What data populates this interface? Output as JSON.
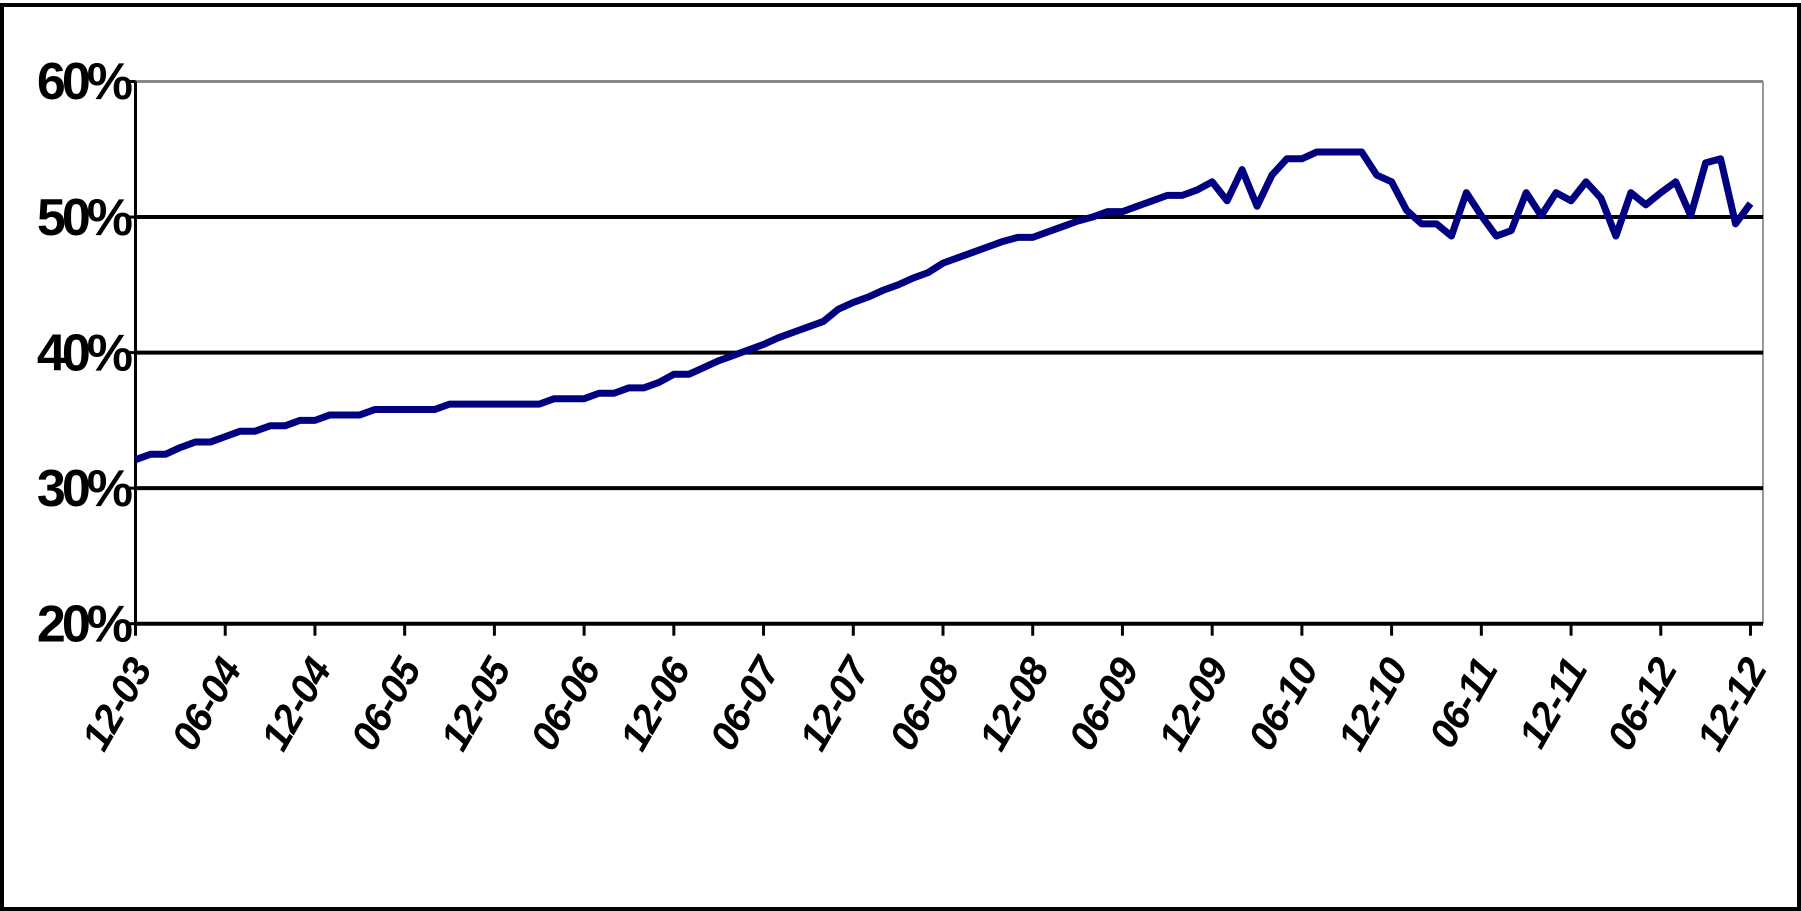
{
  "chart_data": {
    "type": "line",
    "categories": [
      "12-03",
      null,
      null,
      null,
      null,
      null,
      "06-04",
      null,
      null,
      null,
      null,
      null,
      "12-04",
      null,
      null,
      null,
      null,
      null,
      "06-05",
      null,
      null,
      null,
      null,
      null,
      "12-05",
      null,
      null,
      null,
      null,
      null,
      "06-06",
      null,
      null,
      null,
      null,
      null,
      "12-06",
      null,
      null,
      null,
      null,
      null,
      "06-07",
      null,
      null,
      null,
      null,
      null,
      "12-07",
      null,
      null,
      null,
      null,
      null,
      "06-08",
      null,
      null,
      null,
      null,
      null,
      "12-08",
      null,
      null,
      null,
      null,
      null,
      "06-09",
      null,
      null,
      null,
      null,
      null,
      "12-09",
      null,
      null,
      null,
      null,
      null,
      "06-10",
      null,
      null,
      null,
      null,
      null,
      "12-10",
      null,
      null,
      null,
      null,
      null,
      "06-11",
      null,
      null,
      null,
      null,
      null,
      "12-11",
      null,
      null,
      null,
      null,
      null,
      "06-12",
      null,
      null,
      null,
      null,
      null,
      "12-12"
    ],
    "series": [
      {
        "color": "#000080",
        "values": [
          32.1,
          32.5,
          32.5,
          33,
          33.4,
          33.4,
          33.8,
          34.2,
          34.2,
          34.6,
          34.6,
          35,
          35,
          35.4,
          35.4,
          35.4,
          35.8,
          35.8,
          35.8,
          35.8,
          35.8,
          36.2,
          36.2,
          36.2,
          36.2,
          36.2,
          36.2,
          36.2,
          36.6,
          36.6,
          36.6,
          37,
          37,
          37.4,
          37.4,
          37.8,
          38.4,
          38.4,
          38.9,
          39.4,
          39.8,
          40.2,
          40.6,
          41.1,
          41.5,
          41.9,
          42.3,
          43.2,
          43.7,
          44.1,
          44.6,
          45,
          45.5,
          45.9,
          46.6,
          47,
          47.4,
          47.8,
          48.2,
          48.5,
          48.5,
          48.9,
          49.3,
          49.7,
          50,
          50.4,
          50.4,
          50.8,
          51.2,
          51.6,
          51.6,
          52,
          52.6,
          51.2,
          53.5,
          50.8,
          53.1,
          54.3,
          54.3,
          54.8,
          54.8,
          54.8,
          54.8,
          53.1,
          52.6,
          50.5,
          49.5,
          49.5,
          48.6,
          51.8,
          50.1,
          48.6,
          49,
          51.8,
          50.1,
          51.8,
          51.2,
          52.6,
          51.4,
          48.6,
          51.8,
          50.9,
          51.8,
          52.6,
          50.1,
          54,
          54.3,
          49.5,
          51
        ]
      }
    ],
    "ylim": [
      20,
      60
    ],
    "yticks": [
      {
        "value": 20,
        "label": "20%"
      },
      {
        "value": 30,
        "label": "30%"
      },
      {
        "value": 40,
        "label": "40%"
      },
      {
        "value": 50,
        "label": "50%"
      },
      {
        "value": 60,
        "label": "60%"
      }
    ],
    "grid": true
  }
}
